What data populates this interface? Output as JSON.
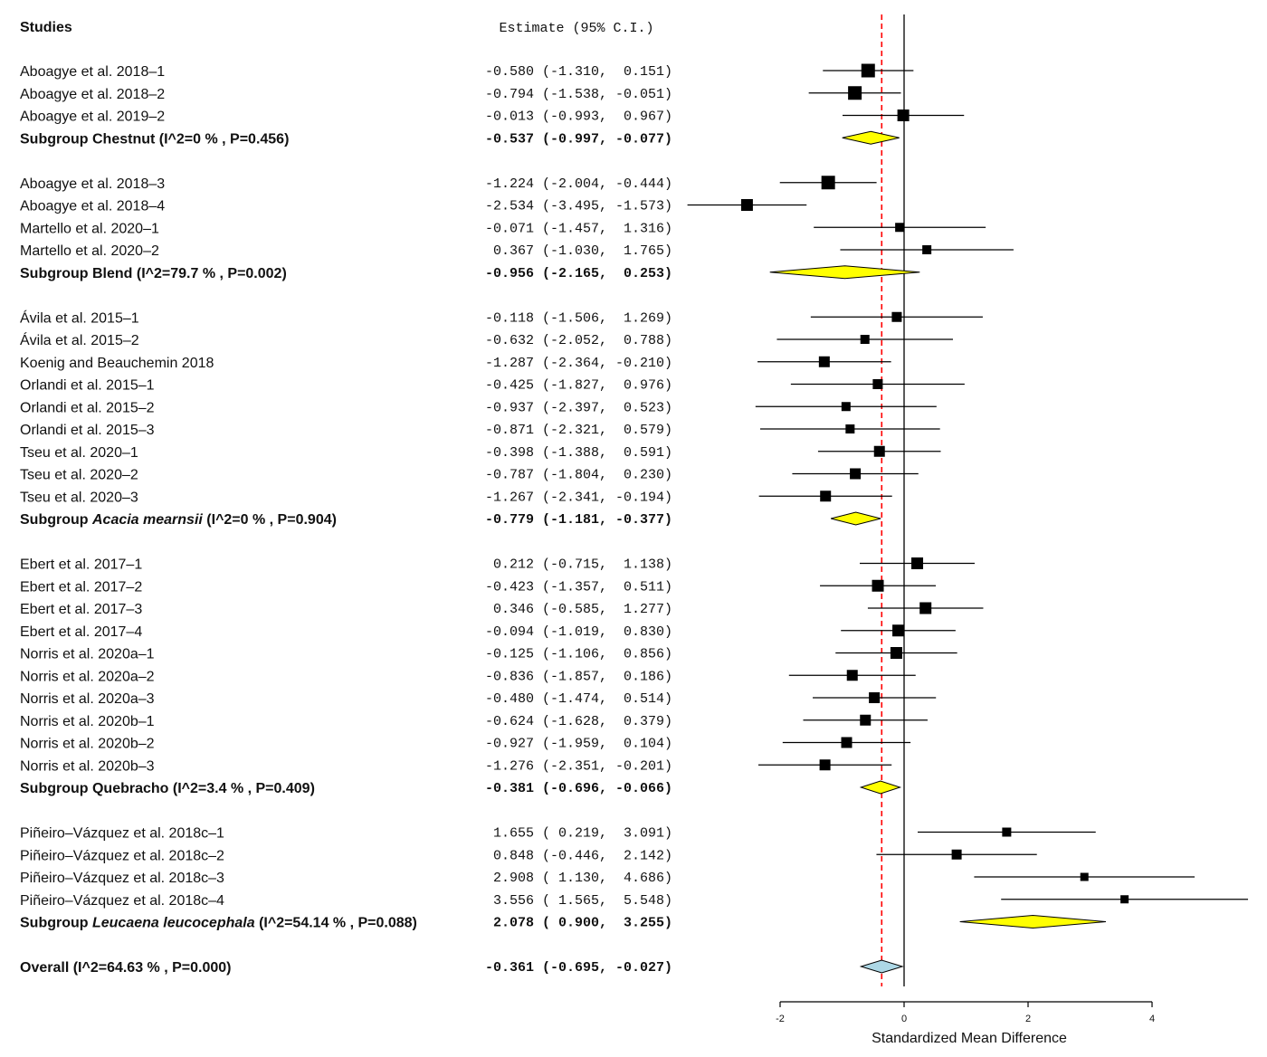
{
  "chart_data": {
    "type": "forest",
    "header_studies": "Studies",
    "header_estimate": "Estimate (95% C.I.)",
    "xlabel": "Standardized Mean Difference",
    "xlim": [
      -2,
      5.5
    ],
    "xticks": [
      -2,
      0,
      2,
      4
    ],
    "null_value": 0,
    "reference_value": -0.361,
    "colors": {
      "subgroup_diamond": "#ffff00",
      "overall_diamond": "#add8e6",
      "reference_line": "#ff0000",
      "study_square": "#000000"
    },
    "rows": [
      {
        "type": "study",
        "label": "Aboagye et al. 2018–1",
        "est": -0.58,
        "lo": -1.31,
        "hi": 0.151,
        "text": "-0.580 (-1.310,  0.151)",
        "size": 15
      },
      {
        "type": "study",
        "label": "Aboagye et al. 2018–2",
        "est": -0.794,
        "lo": -1.538,
        "hi": -0.051,
        "text": "-0.794 (-1.538, -0.051)",
        "size": 15
      },
      {
        "type": "study",
        "label": "Aboagye et al. 2019–2",
        "est": -0.013,
        "lo": -0.993,
        "hi": 0.967,
        "text": "-0.013 (-0.993,  0.967)",
        "size": 13
      },
      {
        "type": "subgroup",
        "label_prefix": "Subgroup ",
        "label_name": "Chestnut",
        "label_italic": false,
        "label_stats": " (I^2=0 % , P=0.456)",
        "est": -0.537,
        "lo": -0.997,
        "hi": -0.077,
        "text": "-0.537 (-0.997, -0.077)"
      },
      {
        "type": "gap"
      },
      {
        "type": "study",
        "label": "Aboagye et al. 2018–3",
        "est": -1.224,
        "lo": -2.004,
        "hi": -0.444,
        "text": "-1.224 (-2.004, -0.444)",
        "size": 15
      },
      {
        "type": "study",
        "label": "Aboagye et al. 2018–4",
        "est": -2.534,
        "lo": -3.495,
        "hi": -1.573,
        "text": "-2.534 (-3.495, -1.573)",
        "size": 13
      },
      {
        "type": "study",
        "label": "Martello et al. 2020–1",
        "est": -0.071,
        "lo": -1.457,
        "hi": 1.316,
        "text": "-0.071 (-1.457,  1.316)",
        "size": 10
      },
      {
        "type": "study",
        "label": "Martello et al. 2020–2",
        "est": 0.367,
        "lo": -1.03,
        "hi": 1.765,
        "text": " 0.367 (-1.030,  1.765)",
        "size": 10
      },
      {
        "type": "subgroup",
        "label_prefix": "Subgroup ",
        "label_name": "Blend",
        "label_italic": false,
        "label_stats": " (I^2=79.7 % , P=0.002)",
        "est": -0.956,
        "lo": -2.165,
        "hi": 0.253,
        "text": "-0.956 (-2.165,  0.253)"
      },
      {
        "type": "gap"
      },
      {
        "type": "study",
        "label": "Ávila et al. 2015–1",
        "est": -0.118,
        "lo": -1.506,
        "hi": 1.269,
        "text": "-0.118 (-1.506,  1.269)",
        "size": 11
      },
      {
        "type": "study",
        "label": "Ávila et al. 2015–2",
        "est": -0.632,
        "lo": -2.052,
        "hi": 0.788,
        "text": "-0.632 (-2.052,  0.788)",
        "size": 10
      },
      {
        "type": "study",
        "label": "Koenig and Beauchemin 2018",
        "est": -1.287,
        "lo": -2.364,
        "hi": -0.21,
        "text": "-1.287 (-2.364, -0.210)",
        "size": 12
      },
      {
        "type": "study",
        "label": "Orlandi et al. 2015–1",
        "est": -0.425,
        "lo": -1.827,
        "hi": 0.976,
        "text": "-0.425 (-1.827,  0.976)",
        "size": 11
      },
      {
        "type": "study",
        "label": "Orlandi et al. 2015–2",
        "est": -0.937,
        "lo": -2.397,
        "hi": 0.523,
        "text": "-0.937 (-2.397,  0.523)",
        "size": 10
      },
      {
        "type": "study",
        "label": "Orlandi et al. 2015–3",
        "est": -0.871,
        "lo": -2.321,
        "hi": 0.579,
        "text": "-0.871 (-2.321,  0.579)",
        "size": 10
      },
      {
        "type": "study",
        "label": "Tseu et al. 2020–1",
        "est": -0.398,
        "lo": -1.388,
        "hi": 0.591,
        "text": "-0.398 (-1.388,  0.591)",
        "size": 12
      },
      {
        "type": "study",
        "label": "Tseu et al. 2020–2",
        "est": -0.787,
        "lo": -1.804,
        "hi": 0.23,
        "text": "-0.787 (-1.804,  0.230)",
        "size": 12
      },
      {
        "type": "study",
        "label": "Tseu et al. 2020–3",
        "est": -1.267,
        "lo": -2.341,
        "hi": -0.194,
        "text": "-1.267 (-2.341, -0.194)",
        "size": 12
      },
      {
        "type": "subgroup",
        "label_prefix": "Subgroup ",
        "label_name": "Acacia mearnsii",
        "label_italic": true,
        "label_stats": " (I^2=0 % , P=0.904)",
        "est": -0.779,
        "lo": -1.181,
        "hi": -0.377,
        "text": "-0.779 (-1.181, -0.377)"
      },
      {
        "type": "gap"
      },
      {
        "type": "study",
        "label": "Ebert et al. 2017–1",
        "est": 0.212,
        "lo": -0.715,
        "hi": 1.138,
        "text": " 0.212 (-0.715,  1.138)",
        "size": 13
      },
      {
        "type": "study",
        "label": "Ebert et al. 2017–2",
        "est": -0.423,
        "lo": -1.357,
        "hi": 0.511,
        "text": "-0.423 (-1.357,  0.511)",
        "size": 13
      },
      {
        "type": "study",
        "label": "Ebert et al. 2017–3",
        "est": 0.346,
        "lo": -0.585,
        "hi": 1.277,
        "text": " 0.346 (-0.585,  1.277)",
        "size": 13
      },
      {
        "type": "study",
        "label": "Ebert et al. 2017–4",
        "est": -0.094,
        "lo": -1.019,
        "hi": 0.83,
        "text": "-0.094 (-1.019,  0.830)",
        "size": 13
      },
      {
        "type": "study",
        "label": "Norris et al. 2020a–1",
        "est": -0.125,
        "lo": -1.106,
        "hi": 0.856,
        "text": "-0.125 (-1.106,  0.856)",
        "size": 13
      },
      {
        "type": "study",
        "label": "Norris et al. 2020a–2",
        "est": -0.836,
        "lo": -1.857,
        "hi": 0.186,
        "text": "-0.836 (-1.857,  0.186)",
        "size": 12
      },
      {
        "type": "study",
        "label": "Norris et al. 2020a–3",
        "est": -0.48,
        "lo": -1.474,
        "hi": 0.514,
        "text": "-0.480 (-1.474,  0.514)",
        "size": 12
      },
      {
        "type": "study",
        "label": "Norris et al. 2020b–1",
        "est": -0.624,
        "lo": -1.628,
        "hi": 0.379,
        "text": "-0.624 (-1.628,  0.379)",
        "size": 12
      },
      {
        "type": "study",
        "label": "Norris et al. 2020b–2",
        "est": -0.927,
        "lo": -1.959,
        "hi": 0.104,
        "text": "-0.927 (-1.959,  0.104)",
        "size": 12
      },
      {
        "type": "study",
        "label": "Norris et al. 2020b–3",
        "est": -1.276,
        "lo": -2.351,
        "hi": -0.201,
        "text": "-1.276 (-2.351, -0.201)",
        "size": 12
      },
      {
        "type": "subgroup",
        "label_prefix": "Subgroup ",
        "label_name": "Quebracho",
        "label_italic": false,
        "label_stats": " (I^2=3.4 % , P=0.409)",
        "est": -0.381,
        "lo": -0.696,
        "hi": -0.066,
        "text": "-0.381 (-0.696, -0.066)"
      },
      {
        "type": "gap"
      },
      {
        "type": "study",
        "label": "Piñeiro–Vázquez et al. 2018c–1",
        "est": 1.655,
        "lo": 0.219,
        "hi": 3.091,
        "text": " 1.655 ( 0.219,  3.091)",
        "size": 10
      },
      {
        "type": "study",
        "label": "Piñeiro–Vázquez et al. 2018c–2",
        "est": 0.848,
        "lo": -0.446,
        "hi": 2.142,
        "text": " 0.848 (-0.446,  2.142)",
        "size": 11
      },
      {
        "type": "study",
        "label": "Piñeiro–Vázquez et al. 2018c–3",
        "est": 2.908,
        "lo": 1.13,
        "hi": 4.686,
        "text": " 2.908 ( 1.130,  4.686)",
        "size": 9
      },
      {
        "type": "study",
        "label": "Piñeiro–Vázquez et al. 2018c–4",
        "est": 3.556,
        "lo": 1.565,
        "hi": 5.548,
        "text": " 3.556 ( 1.565,  5.548)",
        "size": 9
      },
      {
        "type": "subgroup",
        "label_prefix": "Subgroup ",
        "label_name": "Leucaena leucocephala",
        "label_italic": true,
        "label_stats": " (I^2=54.14 % , P=0.088)",
        "est": 2.078,
        "lo": 0.9,
        "hi": 3.255,
        "text": " 2.078 ( 0.900,  3.255)"
      },
      {
        "type": "gap"
      },
      {
        "type": "overall",
        "label": "Overall (I^2=64.63 % , P=0.000)",
        "est": -0.361,
        "lo": -0.695,
        "hi": -0.027,
        "text": "-0.361 (-0.695, -0.027)"
      }
    ]
  }
}
